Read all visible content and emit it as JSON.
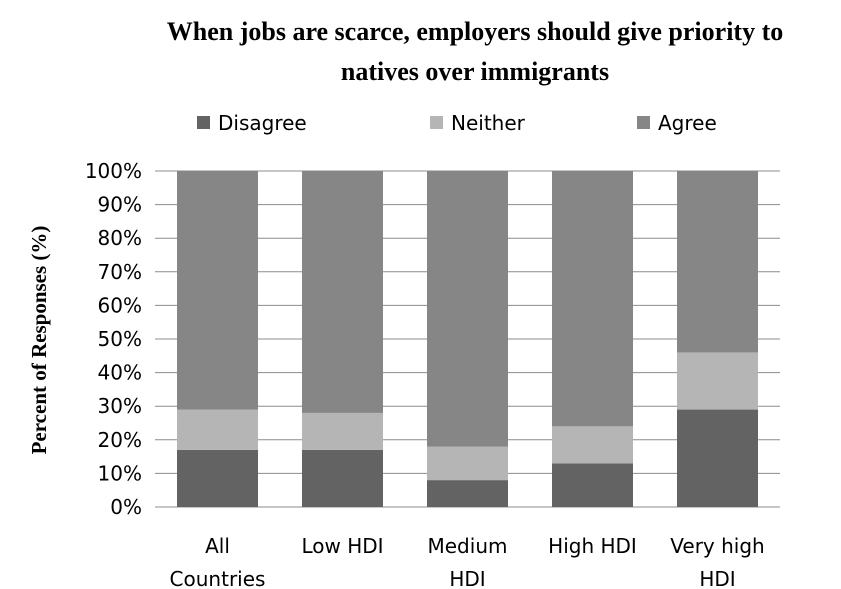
{
  "chart_data": {
    "type": "bar",
    "stacked": true,
    "title_lines": [
      "When jobs are scarce, employers should give priority to",
      "natives over immigrants"
    ],
    "ylabel": "Percent of Responses (%)",
    "xlabel": "",
    "ylim": [
      0,
      100
    ],
    "y_ticks": [
      "0%",
      "10%",
      "20%",
      "30%",
      "40%",
      "50%",
      "60%",
      "70%",
      "80%",
      "90%",
      "100%"
    ],
    "grid": true,
    "legend_position": "top",
    "categories": [
      [
        "All",
        "Countries"
      ],
      [
        "Low HDI"
      ],
      [
        "Medium",
        "HDI"
      ],
      [
        "High HDI"
      ],
      [
        "Very high",
        "HDI"
      ]
    ],
    "series": [
      {
        "name": "Disagree",
        "color": "#636363",
        "values": [
          17,
          17,
          8,
          13,
          29
        ]
      },
      {
        "name": "Neither",
        "color": "#b5b5b5",
        "values": [
          12,
          11,
          10,
          11,
          17
        ]
      },
      {
        "name": "Agree",
        "color": "#868686",
        "values": [
          71,
          72,
          82,
          76,
          54
        ]
      }
    ]
  }
}
